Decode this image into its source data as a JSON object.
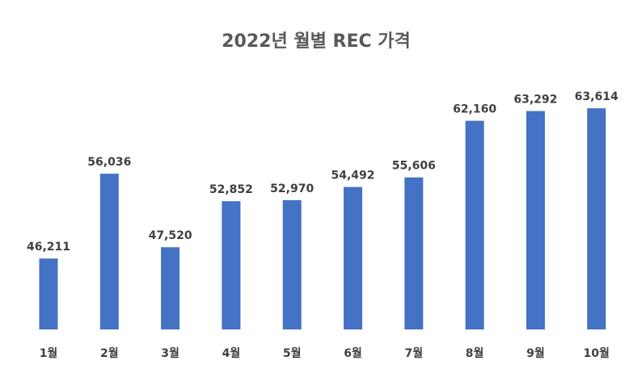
{
  "chart_data": {
    "type": "bar",
    "title": "2022년 월별 REC 가격",
    "categories": [
      "1월",
      "2월",
      "3월",
      "4월",
      "5월",
      "6월",
      "7월",
      "8월",
      "9월",
      "10월"
    ],
    "values": [
      46211,
      56036,
      47520,
      52852,
      52970,
      54492,
      55606,
      62160,
      63292,
      63614
    ],
    "value_labels": [
      "46,211",
      "56,036",
      "47,520",
      "52,852",
      "52,970",
      "54,492",
      "55,606",
      "62,160",
      "63,292",
      "63,614"
    ],
    "xlabel": "",
    "ylabel": "",
    "ylim": [
      38000,
      65500
    ],
    "bar_color": "#4472C4",
    "grid": false,
    "legend": "none"
  }
}
